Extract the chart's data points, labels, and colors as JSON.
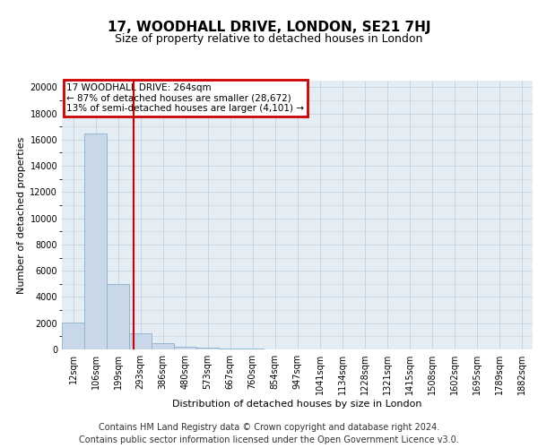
{
  "title": "17, WOODHALL DRIVE, LONDON, SE21 7HJ",
  "subtitle": "Size of property relative to detached houses in London",
  "xlabel": "Distribution of detached houses by size in London",
  "ylabel": "Number of detached properties",
  "annotation_line1": "17 WOODHALL DRIVE: 264sqm",
  "annotation_line2": "← 87% of detached houses are smaller (28,672)",
  "annotation_line3": "13% of semi-detached houses are larger (4,101) →",
  "footer_line1": "Contains HM Land Registry data © Crown copyright and database right 2024.",
  "footer_line2": "Contains public sector information licensed under the Open Government Licence v3.0.",
  "bin_labels": [
    "12sqm",
    "106sqm",
    "199sqm",
    "293sqm",
    "386sqm",
    "480sqm",
    "573sqm",
    "667sqm",
    "760sqm",
    "854sqm",
    "947sqm",
    "1041sqm",
    "1134sqm",
    "1228sqm",
    "1321sqm",
    "1415sqm",
    "1508sqm",
    "1602sqm",
    "1695sqm",
    "1789sqm",
    "1882sqm"
  ],
  "bar_heights": [
    2050,
    16500,
    5000,
    1200,
    500,
    200,
    120,
    90,
    40,
    20,
    0,
    0,
    0,
    0,
    0,
    0,
    0,
    0,
    0,
    0,
    0
  ],
  "bar_color": "#c8d8e8",
  "bar_edge_color": "#8ab0cc",
  "grid_color": "#c8d4de",
  "background_color": "#e4ecf4",
  "vline_color": "#cc0000",
  "ylim_max": 20500,
  "yticks": [
    0,
    2000,
    4000,
    6000,
    8000,
    10000,
    12000,
    14000,
    16000,
    18000,
    20000
  ],
  "annotation_box_edgecolor": "#cc0000",
  "title_fontsize": 11,
  "subtitle_fontsize": 9,
  "axis_fontsize": 8,
  "tick_fontsize": 7,
  "annotation_fontsize": 7.5,
  "footer_fontsize": 7,
  "vline_position": 2.7
}
